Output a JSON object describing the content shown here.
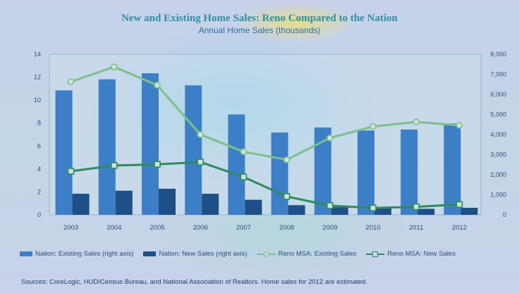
{
  "title": "New and Existing Home Sales: Reno Compared to the Nation",
  "subtitle": "Annual Home Sales (thousands)",
  "source": "Sources: CoreLogic, HUD/Census Bureau, and National Association of Realtors. Home sales for 2012 are estimated.",
  "colors": {
    "nation_existing": "#3d7fc6",
    "nation_new": "#1e4f86",
    "reno_existing": "#7cc08c",
    "reno_new": "#2e8a60",
    "left_axis_text": "#2c4f7a",
    "right_axis_text": "#2c4f7a"
  },
  "chart_data": {
    "type": "bar",
    "categories": [
      "2003",
      "2004",
      "2005",
      "2006",
      "2007",
      "2008",
      "2009",
      "2010",
      "2011",
      "2012"
    ],
    "series": [
      {
        "name": "Nation: Existing Sales (right axis)",
        "kind": "bar",
        "axis": "right",
        "values": [
          6200,
          6750,
          7050,
          6450,
          5000,
          4100,
          4350,
          4200,
          4250,
          4550
        ]
      },
      {
        "name": "Nation: New Sales (right axis)",
        "kind": "bar",
        "axis": "right",
        "values": [
          1050,
          1200,
          1300,
          1050,
          750,
          480,
          380,
          320,
          300,
          350
        ]
      },
      {
        "name": "Reno MSA: Existing Sales",
        "kind": "line",
        "marker": "circle",
        "axis": "left",
        "values": [
          11.6,
          12.9,
          11.3,
          7.0,
          5.5,
          4.8,
          6.7,
          7.7,
          8.1,
          7.8
        ]
      },
      {
        "name": "Reno MSA: New Sales",
        "kind": "line",
        "marker": "square",
        "axis": "left",
        "values": [
          3.8,
          4.3,
          4.4,
          4.6,
          3.3,
          1.6,
          0.8,
          0.6,
          0.7,
          0.9
        ]
      }
    ],
    "left_axis": {
      "min": 0,
      "max": 14,
      "ticks": [
        "0",
        "2",
        "4",
        "6",
        "8",
        "10",
        "12",
        "14"
      ]
    },
    "right_axis": {
      "min": 0,
      "max": 8000,
      "ticks": [
        "0",
        "1,000",
        "2,000",
        "3,000",
        "4,000",
        "5,000",
        "6,000",
        "7,000",
        "8,000"
      ]
    },
    "legend_position": "bottom",
    "grid": false
  }
}
